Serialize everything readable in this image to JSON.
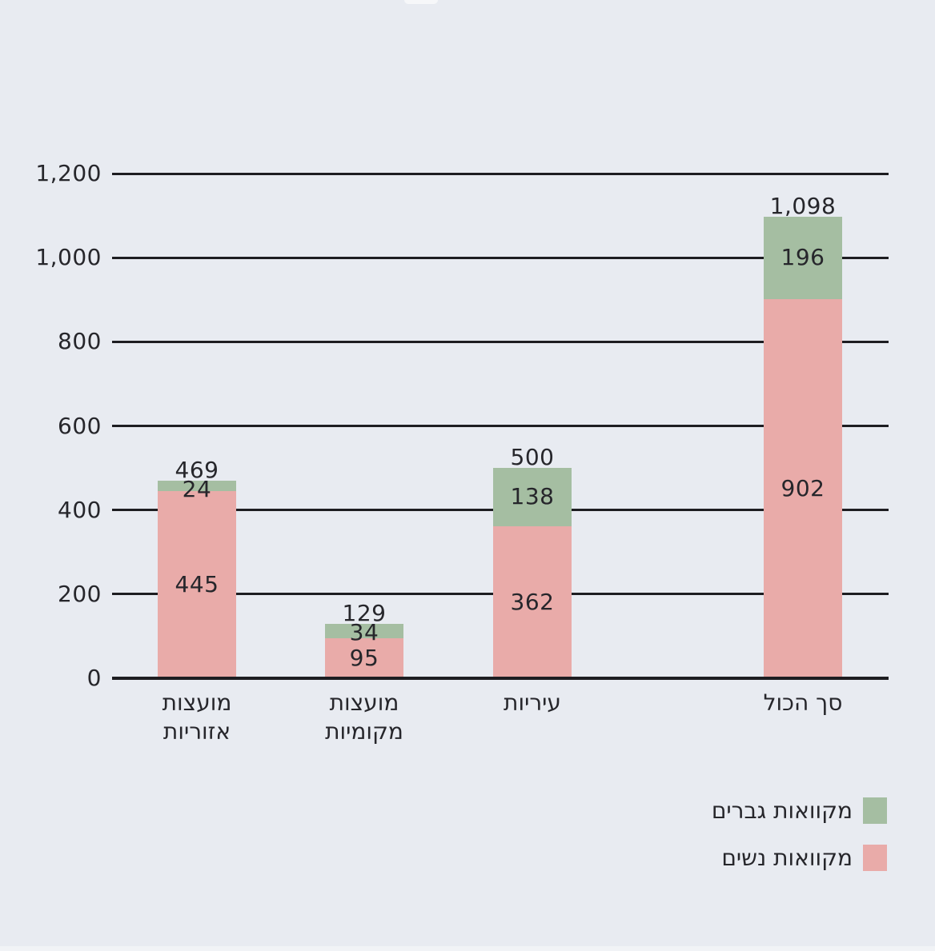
{
  "canvas": {
    "background": "#e8ebf1",
    "text_color": "#26262b",
    "grid_color": "#1d1d21"
  },
  "chart_data": {
    "type": "bar",
    "stacked": true,
    "rtl": true,
    "title": "",
    "xlabel": "",
    "ylabel": "",
    "categories": [
      "מועצות אזוריות",
      "מועצות מקומיות",
      "עיריות",
      "סך הכול"
    ],
    "category_lines": [
      [
        "מועצות",
        "אזוריות"
      ],
      [
        "מועצות",
        "מקומיות"
      ],
      [
        "עיריות"
      ],
      [
        "סך הכול"
      ]
    ],
    "series": [
      {
        "name": "מקוואות נשים",
        "color": "#e9aba9",
        "values": [
          445,
          95,
          362,
          902
        ],
        "value_labels": [
          "445",
          "95",
          "362",
          "902"
        ]
      },
      {
        "name": "מקוואות גברים",
        "color": "#a5bea2",
        "values": [
          24,
          34,
          138,
          196
        ],
        "value_labels": [
          "24",
          "34",
          "138",
          "196"
        ]
      }
    ],
    "totals": [
      469,
      129,
      500,
      1098
    ],
    "total_labels": [
      "469",
      "129",
      "500",
      "1,098"
    ],
    "ylim": [
      0,
      1200
    ],
    "yticks": [
      0,
      200,
      400,
      600,
      800,
      1000,
      1200
    ],
    "ytick_labels": [
      "0",
      "200",
      "400",
      "600",
      "800",
      "1,000",
      "1,200"
    ],
    "grid": true,
    "legend": {
      "position": "bottom-right",
      "items": [
        {
          "label": "מקוואות גברים",
          "color": "#a5bea2"
        },
        {
          "label": "מקוואות נשים",
          "color": "#e9aba9"
        }
      ]
    }
  }
}
